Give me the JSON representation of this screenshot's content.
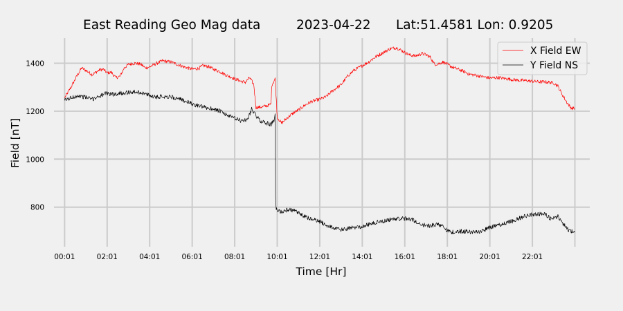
{
  "chart_data": {
    "type": "line",
    "title_parts": [
      "East Reading Geo Mag data",
      "2023-04-22",
      "Lat:51.4581  Lon: 0.9205"
    ],
    "xlabel": "Time  [Hr]",
    "ylabel": "Field  [nT]",
    "x_unit": "hours",
    "xlim": [
      -0.5,
      24.7
    ],
    "ylim": [
      635,
      1505
    ],
    "x_ticks": [
      {
        "x": 0.0,
        "label": "00:01"
      },
      {
        "x": 2.0,
        "label": "02:01"
      },
      {
        "x": 4.0,
        "label": "04:01"
      },
      {
        "x": 6.0,
        "label": "06:01"
      },
      {
        "x": 8.0,
        "label": "08:01"
      },
      {
        "x": 10.0,
        "label": "10:01"
      },
      {
        "x": 12.0,
        "label": "12:01"
      },
      {
        "x": 14.0,
        "label": "14:01"
      },
      {
        "x": 16.0,
        "label": "16:01"
      },
      {
        "x": 18.0,
        "label": "18:01"
      },
      {
        "x": 20.0,
        "label": "20:01"
      },
      {
        "x": 22.0,
        "label": "22:01"
      },
      {
        "x": 24.0,
        "label": ""
      }
    ],
    "y_ticks": [
      800,
      1000,
      1200,
      1400
    ],
    "grid": true,
    "legend_position": "top-right",
    "series": [
      {
        "name": "X Field EW",
        "color": "#ff0000",
        "noise": 7,
        "points": [
          [
            0.0,
            1255
          ],
          [
            0.3,
            1300
          ],
          [
            0.6,
            1350
          ],
          [
            0.8,
            1380
          ],
          [
            1.0,
            1370
          ],
          [
            1.3,
            1352
          ],
          [
            1.6,
            1370
          ],
          [
            1.8,
            1375
          ],
          [
            2.0,
            1360
          ],
          [
            2.2,
            1362
          ],
          [
            2.4,
            1340
          ],
          [
            2.6,
            1345
          ],
          [
            2.8,
            1380
          ],
          [
            3.0,
            1395
          ],
          [
            3.3,
            1400
          ],
          [
            3.6,
            1395
          ],
          [
            3.8,
            1380
          ],
          [
            4.0,
            1385
          ],
          [
            4.3,
            1398
          ],
          [
            4.6,
            1410
          ],
          [
            5.0,
            1405
          ],
          [
            5.3,
            1395
          ],
          [
            5.6,
            1385
          ],
          [
            6.0,
            1375
          ],
          [
            6.3,
            1378
          ],
          [
            6.5,
            1390
          ],
          [
            6.8,
            1385
          ],
          [
            7.0,
            1375
          ],
          [
            7.3,
            1365
          ],
          [
            7.6,
            1350
          ],
          [
            8.0,
            1335
          ],
          [
            8.3,
            1325
          ],
          [
            8.5,
            1320
          ],
          [
            8.7,
            1340
          ],
          [
            8.9,
            1310
          ],
          [
            9.0,
            1215
          ],
          [
            9.3,
            1218
          ],
          [
            9.6,
            1225
          ],
          [
            9.7,
            1230
          ],
          [
            9.75,
            1310
          ],
          [
            9.9,
            1335
          ],
          [
            10.0,
            1175
          ],
          [
            10.2,
            1150
          ],
          [
            10.5,
            1175
          ],
          [
            10.8,
            1195
          ],
          [
            11.0,
            1205
          ],
          [
            11.3,
            1225
          ],
          [
            11.6,
            1240
          ],
          [
            12.0,
            1250
          ],
          [
            12.3,
            1260
          ],
          [
            12.6,
            1285
          ],
          [
            13.0,
            1310
          ],
          [
            13.3,
            1345
          ],
          [
            13.6,
            1370
          ],
          [
            14.0,
            1390
          ],
          [
            14.3,
            1405
          ],
          [
            14.6,
            1425
          ],
          [
            15.0,
            1445
          ],
          [
            15.3,
            1460
          ],
          [
            15.6,
            1465
          ],
          [
            15.9,
            1450
          ],
          [
            16.2,
            1435
          ],
          [
            16.5,
            1430
          ],
          [
            16.8,
            1440
          ],
          [
            17.0,
            1435
          ],
          [
            17.2,
            1425
          ],
          [
            17.4,
            1395
          ],
          [
            17.6,
            1398
          ],
          [
            17.8,
            1405
          ],
          [
            18.0,
            1395
          ],
          [
            18.2,
            1385
          ],
          [
            18.5,
            1375
          ],
          [
            18.8,
            1365
          ],
          [
            19.0,
            1355
          ],
          [
            19.3,
            1350
          ],
          [
            19.6,
            1345
          ],
          [
            20.0,
            1338
          ],
          [
            20.4,
            1340
          ],
          [
            20.8,
            1335
          ],
          [
            21.2,
            1330
          ],
          [
            21.6,
            1328
          ],
          [
            22.0,
            1325
          ],
          [
            22.3,
            1322
          ],
          [
            22.6,
            1322
          ],
          [
            23.0,
            1318
          ],
          [
            23.2,
            1305
          ],
          [
            23.4,
            1270
          ],
          [
            23.6,
            1240
          ],
          [
            23.8,
            1215
          ],
          [
            24.0,
            1210
          ]
        ]
      },
      {
        "name": "Y Field NS",
        "color": "#000000",
        "noise": 9,
        "points": [
          [
            0.0,
            1245
          ],
          [
            0.3,
            1255
          ],
          [
            0.6,
            1265
          ],
          [
            1.0,
            1258
          ],
          [
            1.3,
            1250
          ],
          [
            1.6,
            1262
          ],
          [
            2.0,
            1275
          ],
          [
            2.3,
            1270
          ],
          [
            2.6,
            1275
          ],
          [
            3.0,
            1278
          ],
          [
            3.3,
            1280
          ],
          [
            3.6,
            1278
          ],
          [
            4.0,
            1265
          ],
          [
            4.3,
            1260
          ],
          [
            4.6,
            1262
          ],
          [
            5.0,
            1260
          ],
          [
            5.3,
            1252
          ],
          [
            5.6,
            1245
          ],
          [
            6.0,
            1230
          ],
          [
            6.3,
            1222
          ],
          [
            6.6,
            1215
          ],
          [
            7.0,
            1210
          ],
          [
            7.3,
            1200
          ],
          [
            7.6,
            1185
          ],
          [
            8.0,
            1170
          ],
          [
            8.3,
            1160
          ],
          [
            8.6,
            1165
          ],
          [
            8.8,
            1210
          ],
          [
            9.0,
            1180
          ],
          [
            9.2,
            1160
          ],
          [
            9.5,
            1150
          ],
          [
            9.7,
            1145
          ],
          [
            9.85,
            1160
          ],
          [
            9.9,
            1185
          ],
          [
            9.92,
            840
          ],
          [
            9.95,
            790
          ],
          [
            10.2,
            780
          ],
          [
            10.5,
            790
          ],
          [
            10.8,
            785
          ],
          [
            11.0,
            775
          ],
          [
            11.3,
            760
          ],
          [
            11.6,
            750
          ],
          [
            12.0,
            740
          ],
          [
            12.3,
            725
          ],
          [
            12.6,
            715
          ],
          [
            13.0,
            705
          ],
          [
            13.3,
            710
          ],
          [
            13.6,
            715
          ],
          [
            14.0,
            720
          ],
          [
            14.3,
            728
          ],
          [
            14.6,
            735
          ],
          [
            15.0,
            742
          ],
          [
            15.3,
            748
          ],
          [
            15.6,
            752
          ],
          [
            16.0,
            752
          ],
          [
            16.3,
            750
          ],
          [
            16.6,
            735
          ],
          [
            16.9,
            725
          ],
          [
            17.2,
            722
          ],
          [
            17.5,
            728
          ],
          [
            17.8,
            725
          ],
          [
            18.0,
            700
          ],
          [
            18.3,
            695
          ],
          [
            18.6,
            700
          ],
          [
            19.0,
            698
          ],
          [
            19.3,
            695
          ],
          [
            19.6,
            700
          ],
          [
            20.0,
            715
          ],
          [
            20.3,
            722
          ],
          [
            20.6,
            730
          ],
          [
            21.0,
            740
          ],
          [
            21.3,
            750
          ],
          [
            21.6,
            762
          ],
          [
            22.0,
            770
          ],
          [
            22.3,
            772
          ],
          [
            22.6,
            770
          ],
          [
            22.9,
            748
          ],
          [
            23.2,
            762
          ],
          [
            23.5,
            725
          ],
          [
            23.7,
            705
          ],
          [
            24.0,
            695
          ]
        ]
      }
    ]
  }
}
